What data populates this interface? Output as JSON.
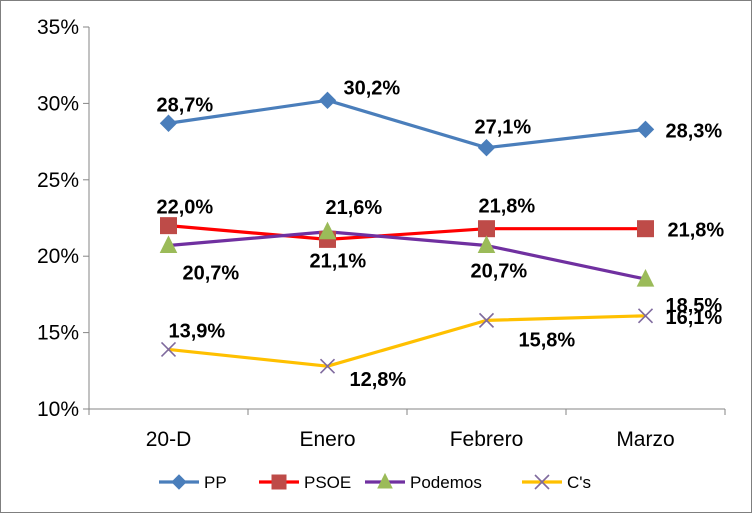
{
  "chart_data": {
    "type": "line",
    "categories": [
      "20-D",
      "Enero",
      "Febrero",
      "Marzo"
    ],
    "ylim": [
      10,
      35
    ],
    "yticks": [
      10,
      15,
      20,
      25,
      30,
      35
    ],
    "ytick_labels": [
      "10%",
      "15%",
      "20%",
      "25%",
      "30%",
      "35%"
    ],
    "grid": false,
    "legend_position": "bottom",
    "series": [
      {
        "name": "PP",
        "color": "#4a7ebb",
        "marker": "diamond",
        "values": [
          28.7,
          30.2,
          27.1,
          28.3
        ],
        "labels": [
          "28,7%",
          "30,2%",
          "27,1%",
          "28,3%"
        ]
      },
      {
        "name": "PSOE",
        "color": "#ff0000",
        "marker": "square",
        "marker_color": "#be4b48",
        "values": [
          22.0,
          21.1,
          21.8,
          21.8
        ],
        "labels": [
          "22,0%",
          "21,1%",
          "21,8%",
          "21,8%"
        ]
      },
      {
        "name": "Podemos",
        "color": "#7030a0",
        "marker": "triangle",
        "marker_color": "#9bbb59",
        "values": [
          20.7,
          21.6,
          20.7,
          18.5
        ],
        "labels": [
          "20,7%",
          "21,6%",
          "20,7%",
          "18,5%"
        ]
      },
      {
        "name": "C's",
        "color": "#ffc000",
        "marker": "x",
        "marker_color": "#7f6a9e",
        "values": [
          13.9,
          12.8,
          15.8,
          16.1
        ],
        "labels": [
          "13,9%",
          "12,8%",
          "15,8%",
          "16,1%"
        ]
      }
    ]
  }
}
